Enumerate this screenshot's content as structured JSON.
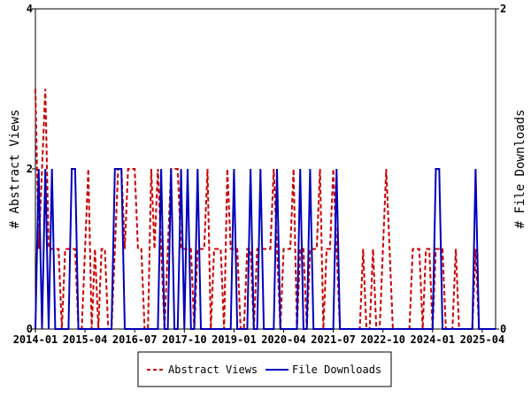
{
  "chart_data": {
    "type": "line",
    "title": "",
    "x_start": "2014-01",
    "x_step": "month",
    "xticks": [
      "2014-01",
      "2015-04",
      "2016-07",
      "2017-10",
      "2019-01",
      "2020-04",
      "2021-07",
      "2022-10",
      "2024-01",
      "2025-04"
    ],
    "ylabel_left": "# Abstract Views",
    "ylabel_right": "# File Downloads",
    "ylim_left": [
      0,
      4
    ],
    "ylim_right": [
      0,
      2
    ],
    "yticks_left": [
      "0",
      "2",
      "4"
    ],
    "yticks_right": [
      "0",
      "2"
    ],
    "legend_position": "bottom-center",
    "series": [
      {
        "name": "Abstract Views",
        "axis": "left",
        "color": "#cc0000",
        "style": "dashed",
        "values": [
          3,
          1,
          2,
          3,
          1,
          1,
          1,
          1,
          0,
          1,
          1,
          1,
          1,
          0,
          0,
          1,
          2,
          0,
          1,
          0,
          1,
          1,
          0,
          0,
          1,
          2,
          2,
          1,
          2,
          2,
          2,
          1,
          1,
          0,
          0,
          2,
          1,
          2,
          1,
          0,
          1,
          2,
          2,
          2,
          1,
          1,
          1,
          1,
          0,
          1,
          1,
          1,
          2,
          0,
          1,
          1,
          1,
          0,
          2,
          1,
          1,
          1,
          0,
          0,
          1,
          1,
          0,
          1,
          1,
          1,
          1,
          1,
          2,
          1,
          0,
          1,
          1,
          1,
          2,
          0,
          1,
          1,
          0,
          1,
          1,
          1,
          2,
          0,
          1,
          1,
          2,
          1,
          0,
          0,
          0,
          0,
          0,
          0,
          0,
          1,
          0,
          0,
          1,
          0,
          0,
          1,
          2,
          1,
          0,
          0,
          0,
          0,
          0,
          0,
          1,
          1,
          1,
          0,
          1,
          1,
          0,
          1,
          1,
          1,
          0,
          0,
          0,
          1,
          0,
          0,
          0,
          0,
          0,
          1,
          0,
          0,
          0,
          0,
          0,
          0
        ]
      },
      {
        "name": "File Downloads",
        "axis": "right",
        "color": "#0000bb",
        "style": "solid",
        "values": [
          0,
          1,
          0,
          1,
          0,
          1,
          0,
          0,
          0,
          0,
          0,
          1,
          1,
          0,
          0,
          0,
          0,
          0,
          0,
          0,
          0,
          0,
          0,
          0,
          1,
          1,
          1,
          0,
          0,
          0,
          0,
          0,
          0,
          0,
          0,
          0,
          0,
          0,
          1,
          0,
          0,
          1,
          0,
          0,
          1,
          0,
          1,
          0,
          0,
          1,
          0,
          0,
          0,
          0,
          0,
          0,
          0,
          0,
          0,
          0,
          1,
          0,
          0,
          0,
          0,
          1,
          0,
          0,
          1,
          0,
          0,
          0,
          0,
          1,
          0,
          0,
          0,
          0,
          0,
          0,
          1,
          0,
          0,
          1,
          0,
          0,
          0,
          0,
          0,
          0,
          0,
          1,
          0,
          0,
          0,
          0,
          0,
          0,
          0,
          0,
          0,
          0,
          0,
          0,
          0,
          0,
          0,
          0,
          0,
          0,
          0,
          0,
          0,
          0,
          0,
          0,
          0,
          0,
          0,
          0,
          0,
          1,
          1,
          0,
          0,
          0,
          0,
          0,
          0,
          0,
          0,
          0,
          0,
          1,
          0,
          0,
          0,
          0,
          0,
          0
        ]
      }
    ]
  }
}
